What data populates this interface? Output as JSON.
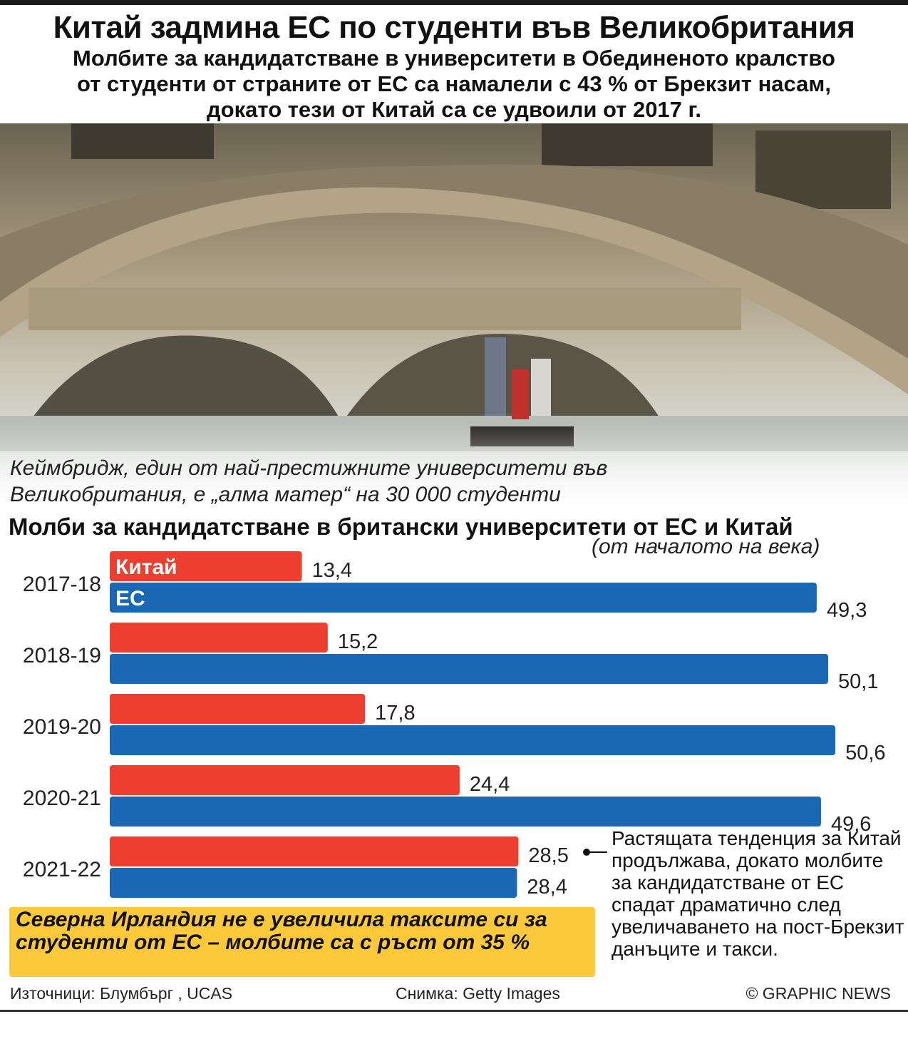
{
  "header": {
    "title": "Китай задмина ЕС по студенти във Великобритания",
    "subtitle_lines": [
      "Молбите за кандидатстване в университети в Обединеното кралство",
      "от студенти от страните от ЕС са намалели с 43 % от Брекзит насам,",
      "докато тези от Китай са се удвоили от 2017 г."
    ]
  },
  "photo": {
    "caption_lines": [
      "Кеймбридж, един от най-престижните университети във",
      "Великобритания, е „алма матер“ на 30 000 студенти"
    ]
  },
  "chart_data": {
    "type": "bar",
    "orientation": "horizontal",
    "title": "Молби за кандидатстване в британски университети от ЕС и Китай",
    "subtitle": "(от началото на века)",
    "categories": [
      "2017-18",
      "2018-19",
      "2019-20",
      "2020-21",
      "2021-22"
    ],
    "series": [
      {
        "name": "Китай",
        "color": "#ee3e2f",
        "values": [
          13.4,
          15.2,
          17.8,
          24.4,
          28.5
        ],
        "labels": [
          "13,4",
          "15,2",
          "17,8",
          "24,4",
          "28,5"
        ]
      },
      {
        "name": "ЕС",
        "color": "#1a67b4",
        "values": [
          49.3,
          50.1,
          50.6,
          49.6,
          28.4
        ],
        "labels": [
          "49,3",
          "50,1",
          "50,6",
          "49,6",
          "28,4"
        ]
      }
    ],
    "xlim": [
      0,
      52
    ],
    "grid": false,
    "legend": "inside-first-bars",
    "annotation": "Растящата тенденция за Китай продължава, докато молбите за кандидатстване от ЕС спадат драматично след увеличаването на пост-Брекзит данъците и такси."
  },
  "note": "Северна Ирландия не е увеличила таксите си за студенти от ЕС – молбите са с ръст от 35 %",
  "footer": {
    "sources": "Източници: Блумбърг , UCAS",
    "photo_credit": "Снимка: Getty Images",
    "copyright": "© GRAPHIC NEWS"
  }
}
